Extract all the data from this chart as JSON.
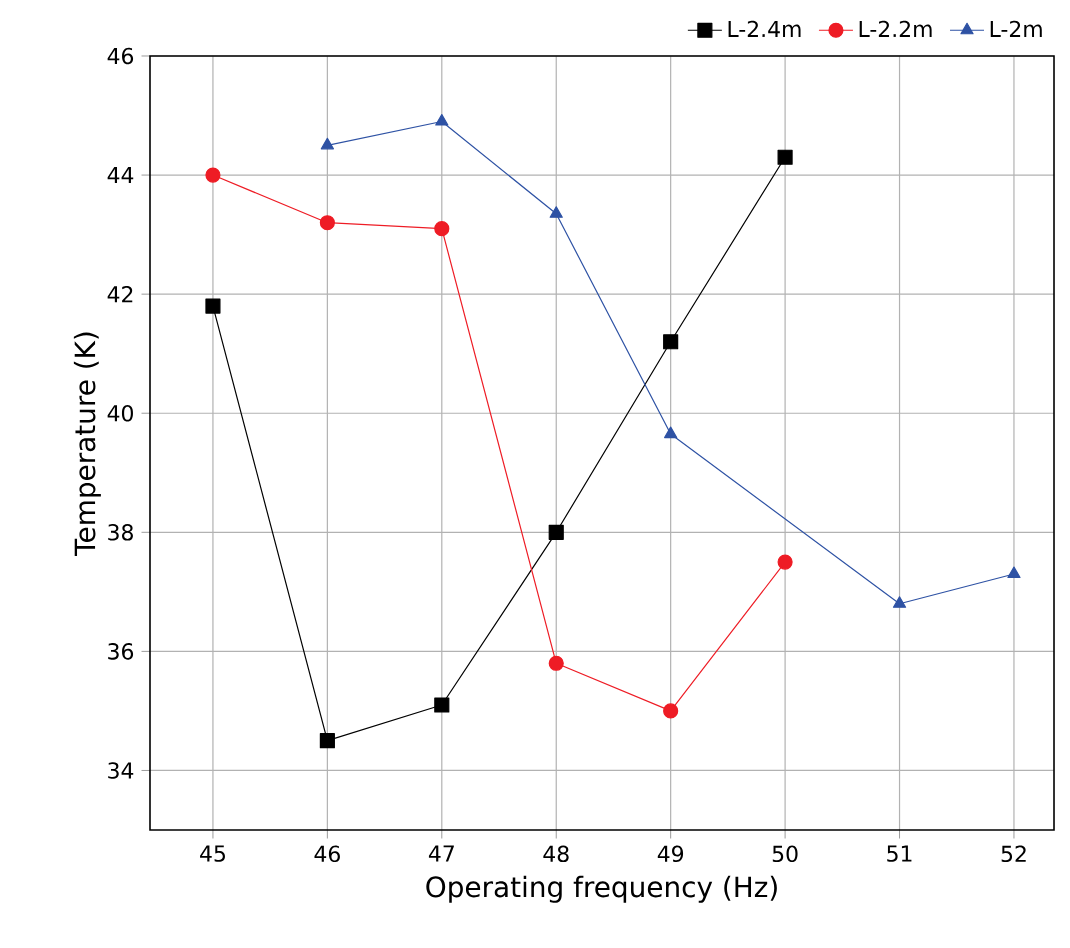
{
  "chart_data": {
    "type": "line",
    "xlabel": "Operating frequency (Hz)",
    "ylabel": "Temperature (K)",
    "xlim": [
      44.45,
      52.35
    ],
    "ylim": [
      33,
      46
    ],
    "xticks": [
      45,
      46,
      47,
      48,
      49,
      50,
      51,
      52
    ],
    "yticks": [
      34,
      36,
      38,
      40,
      42,
      44,
      46
    ],
    "grid": true,
    "legend": "top right",
    "line_style": "solid",
    "series": [
      {
        "name": "L-2.4m",
        "color": "#000000",
        "marker": "square",
        "x": [
          45,
          46,
          47,
          48,
          49,
          50
        ],
        "values": [
          41.8,
          34.5,
          35.1,
          38.0,
          41.2,
          44.3
        ]
      },
      {
        "name": "L-2.2m",
        "color": "#ee1c25",
        "marker": "circle",
        "x": [
          45,
          46,
          47,
          48,
          49,
          50
        ],
        "values": [
          44.0,
          43.2,
          43.1,
          35.8,
          35.0,
          37.5
        ]
      },
      {
        "name": "L-2m",
        "color": "#2e52a4",
        "marker": "triangle",
        "x": [
          46,
          47,
          48,
          49,
          51,
          52
        ],
        "values": [
          44.5,
          44.9,
          43.35,
          39.65,
          36.8,
          37.3
        ]
      }
    ]
  }
}
